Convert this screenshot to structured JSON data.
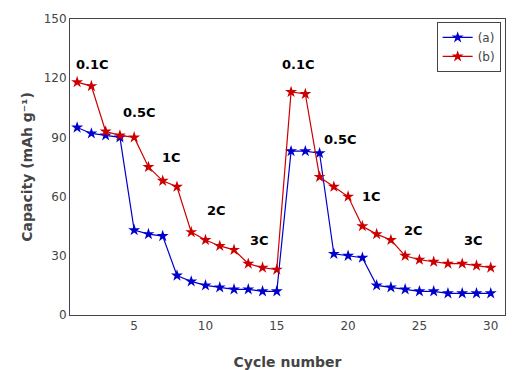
{
  "chart_data": {
    "type": "line",
    "title": "",
    "xlabel": "Cycle number",
    "ylabel": "Capacity (mAh g⁻¹)",
    "x": [
      1,
      2,
      3,
      4,
      5,
      6,
      7,
      8,
      9,
      10,
      11,
      12,
      13,
      14,
      15,
      16,
      17,
      18,
      19,
      20,
      21,
      22,
      23,
      24,
      25,
      26,
      27,
      28,
      29,
      30
    ],
    "series": [
      {
        "name": "(a)",
        "color": "#0000cc",
        "marker": "star",
        "line_style": "solid",
        "values": [
          95,
          92,
          91,
          90,
          43,
          41,
          40,
          20,
          17,
          15,
          14,
          13,
          13,
          12,
          12,
          83,
          83,
          82,
          31,
          30,
          29,
          15,
          14,
          13,
          12,
          12,
          11,
          11,
          11,
          11
        ]
      },
      {
        "name": "(b)",
        "color": "#cc0000",
        "marker": "star",
        "line_style": "solid",
        "values": [
          118,
          116,
          93,
          91,
          90,
          75,
          68,
          65,
          42,
          38,
          35,
          33,
          26,
          24,
          23,
          113,
          112,
          70,
          65,
          60,
          45,
          41,
          38,
          30,
          28,
          27,
          26,
          26,
          25,
          24
        ]
      }
    ],
    "xlim": [
      0.5,
      31
    ],
    "ylim": [
      0,
      150
    ],
    "xticks": [
      5,
      10,
      15,
      20,
      25,
      30
    ],
    "yticks": [
      0,
      30,
      60,
      90,
      120,
      150
    ],
    "annotations": [
      {
        "text": "0.1C",
        "x": 0.8,
        "y": 122
      },
      {
        "text": "0.5C",
        "x": 4.1,
        "y": 98
      },
      {
        "text": "1C",
        "x": 6.8,
        "y": 75
      },
      {
        "text": "2C",
        "x": 10.0,
        "y": 48
      },
      {
        "text": "3C",
        "x": 13.0,
        "y": 33
      },
      {
        "text": "0.1C",
        "x": 15.2,
        "y": 122
      },
      {
        "text": "0.5C",
        "x": 18.2,
        "y": 84
      },
      {
        "text": "1C",
        "x": 20.8,
        "y": 55
      },
      {
        "text": "2C",
        "x": 23.8,
        "y": 38
      },
      {
        "text": "3C",
        "x": 28.0,
        "y": 33
      }
    ],
    "legend": "upper right",
    "grid": false
  }
}
